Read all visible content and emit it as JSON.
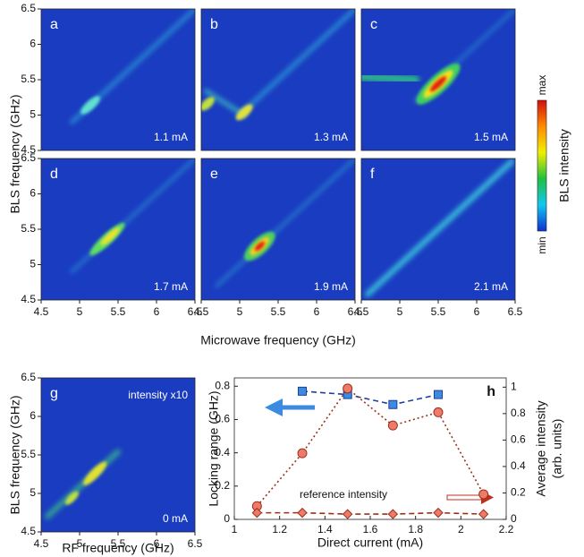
{
  "figure": {
    "ylabel": "BLS frequency (GHz)",
    "xlabel": "Microwave frequency (GHz)",
    "colorbar": {
      "max": "max",
      "min": "min",
      "label": "BLS intensity"
    }
  },
  "chart_data": [
    {
      "type": "heatmap",
      "label": "a",
      "annotation": "1.1 mA",
      "xlim": [
        4.5,
        6.5
      ],
      "ylim": [
        4.5,
        6.5
      ],
      "yticks": [
        4.5,
        5,
        5.5,
        6,
        6.5
      ]
    },
    {
      "type": "heatmap",
      "label": "b",
      "annotation": "1.3 mA",
      "xlim": [
        4.5,
        6.5
      ],
      "ylim": [
        4.5,
        6.5
      ]
    },
    {
      "type": "heatmap",
      "label": "c",
      "annotation": "1.5 mA",
      "xlim": [
        4.5,
        6.5
      ],
      "ylim": [
        4.5,
        6.5
      ]
    },
    {
      "type": "heatmap",
      "label": "d",
      "annotation": "1.7 mA",
      "xlim": [
        4.5,
        6.5
      ],
      "ylim": [
        4.5,
        6.5
      ],
      "xticks": [
        4.5,
        5,
        5.5,
        6,
        6.5
      ],
      "yticks": [
        4.5,
        5,
        5.5,
        6,
        6.5
      ]
    },
    {
      "type": "heatmap",
      "label": "e",
      "annotation": "1.9 mA",
      "xlim": [
        4.5,
        6.5
      ],
      "ylim": [
        4.5,
        6.5
      ],
      "xticks": [
        4.5,
        5,
        5.5,
        6,
        6.5
      ]
    },
    {
      "type": "heatmap",
      "label": "f",
      "annotation": "2.1 mA",
      "xlim": [
        4.5,
        6.5
      ],
      "ylim": [
        4.5,
        6.5
      ],
      "xticks": [
        4.5,
        5,
        5.5,
        6,
        6.5
      ]
    },
    {
      "type": "heatmap",
      "label": "g",
      "annotation": "0 mA",
      "note": "intensity x10",
      "xlabel": "RF frequency (GHz)",
      "ylabel": "BLS frequency (GHz)",
      "xlim": [
        4.5,
        6.5
      ],
      "ylim": [
        4.5,
        6.5
      ],
      "xticks": [
        4.5,
        5,
        5.5,
        6,
        6.5
      ],
      "yticks": [
        4.5,
        5,
        5.5,
        6,
        6.5
      ]
    },
    {
      "type": "line",
      "label": "h",
      "annotation": "reference intensity",
      "xlabel": "Direct current (mA)",
      "ylabel": "Locking range (GHz)",
      "y2label": [
        "Average intensity",
        "(arb. units)"
      ],
      "xlim": [
        1,
        2.2
      ],
      "xticks": [
        1,
        1.2,
        1.4,
        1.6,
        1.8,
        2,
        2.2
      ],
      "ylim": [
        0,
        0.85
      ],
      "yticks": [
        0,
        0.2,
        0.4,
        0.6,
        0.8
      ],
      "y2lim": [
        0,
        1.07
      ],
      "y2ticks": [
        0,
        0.2,
        0.4,
        0.6,
        0.8,
        1
      ],
      "series": [
        {
          "x": [
            1.3,
            1.5,
            1.7,
            1.9
          ],
          "values": [
            0.77,
            0.75,
            0.69,
            0.75
          ],
          "color": "#3d8be0",
          "line_color": "#1f3f9f",
          "marker": "square",
          "axis": "y"
        },
        {
          "x": [
            1.1,
            1.3,
            1.5,
            1.7,
            1.9,
            2.1
          ],
          "values": [
            0.1,
            0.5,
            0.99,
            0.71,
            0.81,
            0.19
          ],
          "color": "#f07a6a",
          "line_color": "#9a3018",
          "marker": "circle",
          "axis": "y2"
        },
        {
          "x": [
            1.1,
            1.3,
            1.5,
            1.7,
            1.9,
            2.1
          ],
          "values": [
            0.05,
            0.05,
            0.04,
            0.04,
            0.05,
            0.04
          ],
          "color": "#f07a6a",
          "line_color": "#9a3018",
          "marker": "diamond",
          "axis": "y2"
        }
      ]
    }
  ]
}
